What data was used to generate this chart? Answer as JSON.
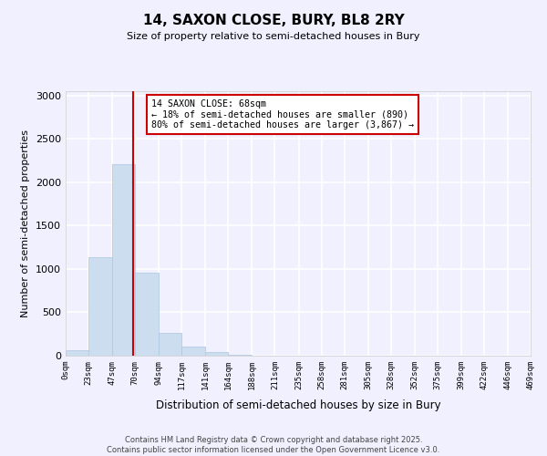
{
  "title": "14, SAXON CLOSE, BURY, BL8 2RY",
  "subtitle": "Size of property relative to semi-detached houses in Bury",
  "xlabel": "Distribution of semi-detached houses by size in Bury",
  "ylabel": "Number of semi-detached properties",
  "bar_color": "#ccddf0",
  "bar_edge_color": "#adc6e0",
  "background_color": "#f0f0ff",
  "grid_color": "#ffffff",
  "annotation_line_color": "#cc0000",
  "annotation_box_color": "#cc0000",
  "annotation_text": "14 SAXON CLOSE: 68sqm\n← 18% of semi-detached houses are smaller (890)\n80% of semi-detached houses are larger (3,867) →",
  "property_size": 68,
  "bin_edges": [
    0,
    23,
    47,
    70,
    94,
    117,
    141,
    164,
    188,
    211,
    235,
    258,
    281,
    305,
    328,
    352,
    375,
    399,
    422,
    446,
    469
  ],
  "bin_labels": [
    "0sqm",
    "23sqm",
    "47sqm",
    "70sqm",
    "94sqm",
    "117sqm",
    "141sqm",
    "164sqm",
    "188sqm",
    "211sqm",
    "235sqm",
    "258sqm",
    "281sqm",
    "305sqm",
    "328sqm",
    "352sqm",
    "375sqm",
    "399sqm",
    "422sqm",
    "446sqm",
    "469sqm"
  ],
  "counts": [
    60,
    1140,
    2210,
    960,
    265,
    105,
    45,
    10,
    5,
    2,
    1,
    0,
    0,
    0,
    0,
    0,
    0,
    0,
    0,
    0
  ],
  "ylim": [
    0,
    3050
  ],
  "yticks": [
    0,
    500,
    1000,
    1500,
    2000,
    2500,
    3000
  ],
  "footer_line1": "Contains HM Land Registry data © Crown copyright and database right 2025.",
  "footer_line2": "Contains public sector information licensed under the Open Government Licence v3.0."
}
